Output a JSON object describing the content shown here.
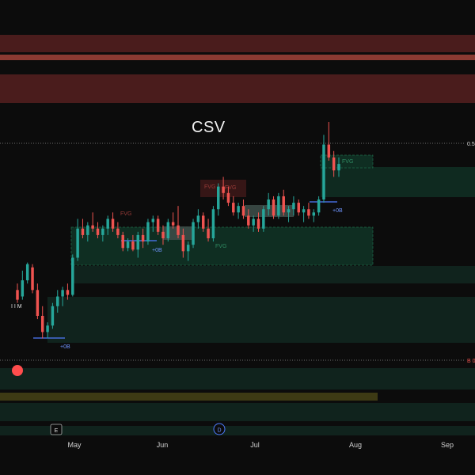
{
  "symbol_title": "CSV",
  "colors": {
    "background": "#0c0c0c",
    "up": "#26a69a",
    "down": "#ef5350",
    "fvg_zone": "#0f2e22",
    "fvg_zone_border": "#1f6b4a",
    "resistance_band": "#4a1c1c",
    "resistance_line": "#8a3a32",
    "yellow_band": "#3d3a14",
    "blue_marker": "#4f7cff"
  },
  "chart_data": {
    "type": "candlestick",
    "title": "CSV",
    "x_axis_months": [
      "May",
      "Jun",
      "Jul",
      "Aug",
      "Sep"
    ],
    "event_markers": [
      {
        "label": "E",
        "month_position": "late April"
      },
      {
        "label": "D",
        "month_position": "mid June"
      }
    ],
    "annotations": {
      "fvg_labels": [
        "FVG",
        "FVG",
        "FVG",
        "FVG",
        "FVG"
      ],
      "plus_labels": [
        "+0B",
        "+0B",
        "+0B",
        "+0B"
      ],
      "level_label_right_top": "0.5",
      "level_label_right_bottom": "B 0",
      "marker_left": "I I M"
    },
    "candles": [
      {
        "o": 80,
        "h": 84,
        "l": 72,
        "c": 74
      },
      {
        "o": 76,
        "h": 92,
        "l": 74,
        "c": 86
      },
      {
        "o": 86,
        "h": 97,
        "l": 84,
        "c": 96
      },
      {
        "o": 94,
        "h": 96,
        "l": 78,
        "c": 80
      },
      {
        "o": 80,
        "h": 84,
        "l": 62,
        "c": 64
      },
      {
        "o": 64,
        "h": 70,
        "l": 50,
        "c": 54
      },
      {
        "o": 54,
        "h": 60,
        "l": 50,
        "c": 58
      },
      {
        "o": 58,
        "h": 72,
        "l": 56,
        "c": 70
      },
      {
        "o": 70,
        "h": 80,
        "l": 66,
        "c": 76
      },
      {
        "o": 76,
        "h": 82,
        "l": 70,
        "c": 80
      },
      {
        "o": 80,
        "h": 84,
        "l": 74,
        "c": 77
      },
      {
        "o": 77,
        "h": 102,
        "l": 76,
        "c": 100
      },
      {
        "o": 100,
        "h": 124,
        "l": 98,
        "c": 118
      },
      {
        "o": 118,
        "h": 124,
        "l": 112,
        "c": 114
      },
      {
        "o": 114,
        "h": 122,
        "l": 110,
        "c": 120
      },
      {
        "o": 120,
        "h": 128,
        "l": 116,
        "c": 118
      },
      {
        "o": 118,
        "h": 122,
        "l": 112,
        "c": 114
      },
      {
        "o": 114,
        "h": 120,
        "l": 110,
        "c": 118
      },
      {
        "o": 118,
        "h": 126,
        "l": 114,
        "c": 124
      },
      {
        "o": 124,
        "h": 128,
        "l": 116,
        "c": 118
      },
      {
        "o": 118,
        "h": 122,
        "l": 112,
        "c": 114
      },
      {
        "o": 114,
        "h": 116,
        "l": 104,
        "c": 106
      },
      {
        "o": 106,
        "h": 112,
        "l": 104,
        "c": 110
      },
      {
        "o": 110,
        "h": 114,
        "l": 104,
        "c": 105
      },
      {
        "o": 105,
        "h": 116,
        "l": 100,
        "c": 114
      },
      {
        "o": 114,
        "h": 118,
        "l": 106,
        "c": 110
      },
      {
        "o": 110,
        "h": 124,
        "l": 108,
        "c": 122
      },
      {
        "o": 122,
        "h": 126,
        "l": 116,
        "c": 124
      },
      {
        "o": 124,
        "h": 126,
        "l": 114,
        "c": 116
      },
      {
        "o": 116,
        "h": 120,
        "l": 108,
        "c": 112
      },
      {
        "o": 112,
        "h": 124,
        "l": 110,
        "c": 122
      },
      {
        "o": 122,
        "h": 128,
        "l": 118,
        "c": 120
      },
      {
        "o": 120,
        "h": 132,
        "l": 112,
        "c": 114
      },
      {
        "o": 114,
        "h": 118,
        "l": 100,
        "c": 104
      },
      {
        "o": 104,
        "h": 110,
        "l": 98,
        "c": 108
      },
      {
        "o": 108,
        "h": 124,
        "l": 106,
        "c": 122
      },
      {
        "o": 122,
        "h": 130,
        "l": 118,
        "c": 126
      },
      {
        "o": 126,
        "h": 128,
        "l": 116,
        "c": 118
      },
      {
        "o": 118,
        "h": 124,
        "l": 110,
        "c": 112
      },
      {
        "o": 112,
        "h": 132,
        "l": 110,
        "c": 130
      },
      {
        "o": 130,
        "h": 146,
        "l": 126,
        "c": 144
      },
      {
        "o": 144,
        "h": 150,
        "l": 136,
        "c": 140
      },
      {
        "o": 140,
        "h": 144,
        "l": 132,
        "c": 134
      },
      {
        "o": 134,
        "h": 138,
        "l": 126,
        "c": 128
      },
      {
        "o": 128,
        "h": 134,
        "l": 124,
        "c": 132
      },
      {
        "o": 132,
        "h": 136,
        "l": 124,
        "c": 126
      },
      {
        "o": 126,
        "h": 130,
        "l": 118,
        "c": 120
      },
      {
        "o": 120,
        "h": 126,
        "l": 116,
        "c": 124
      },
      {
        "o": 124,
        "h": 128,
        "l": 116,
        "c": 118
      },
      {
        "o": 118,
        "h": 132,
        "l": 116,
        "c": 130
      },
      {
        "o": 130,
        "h": 140,
        "l": 126,
        "c": 136
      },
      {
        "o": 136,
        "h": 138,
        "l": 124,
        "c": 126
      },
      {
        "o": 126,
        "h": 140,
        "l": 124,
        "c": 138
      },
      {
        "o": 138,
        "h": 142,
        "l": 126,
        "c": 128
      },
      {
        "o": 128,
        "h": 132,
        "l": 122,
        "c": 130
      },
      {
        "o": 130,
        "h": 138,
        "l": 126,
        "c": 134
      },
      {
        "o": 134,
        "h": 136,
        "l": 126,
        "c": 128
      },
      {
        "o": 128,
        "h": 132,
        "l": 122,
        "c": 130
      },
      {
        "o": 130,
        "h": 134,
        "l": 124,
        "c": 126
      },
      {
        "o": 126,
        "h": 130,
        "l": 122,
        "c": 128
      },
      {
        "o": 128,
        "h": 138,
        "l": 126,
        "c": 136
      },
      {
        "o": 136,
        "h": 176,
        "l": 134,
        "c": 170
      },
      {
        "o": 170,
        "h": 184,
        "l": 160,
        "c": 162
      },
      {
        "o": 162,
        "h": 166,
        "l": 150,
        "c": 154
      },
      {
        "o": 154,
        "h": 162,
        "l": 150,
        "c": 158
      }
    ]
  }
}
